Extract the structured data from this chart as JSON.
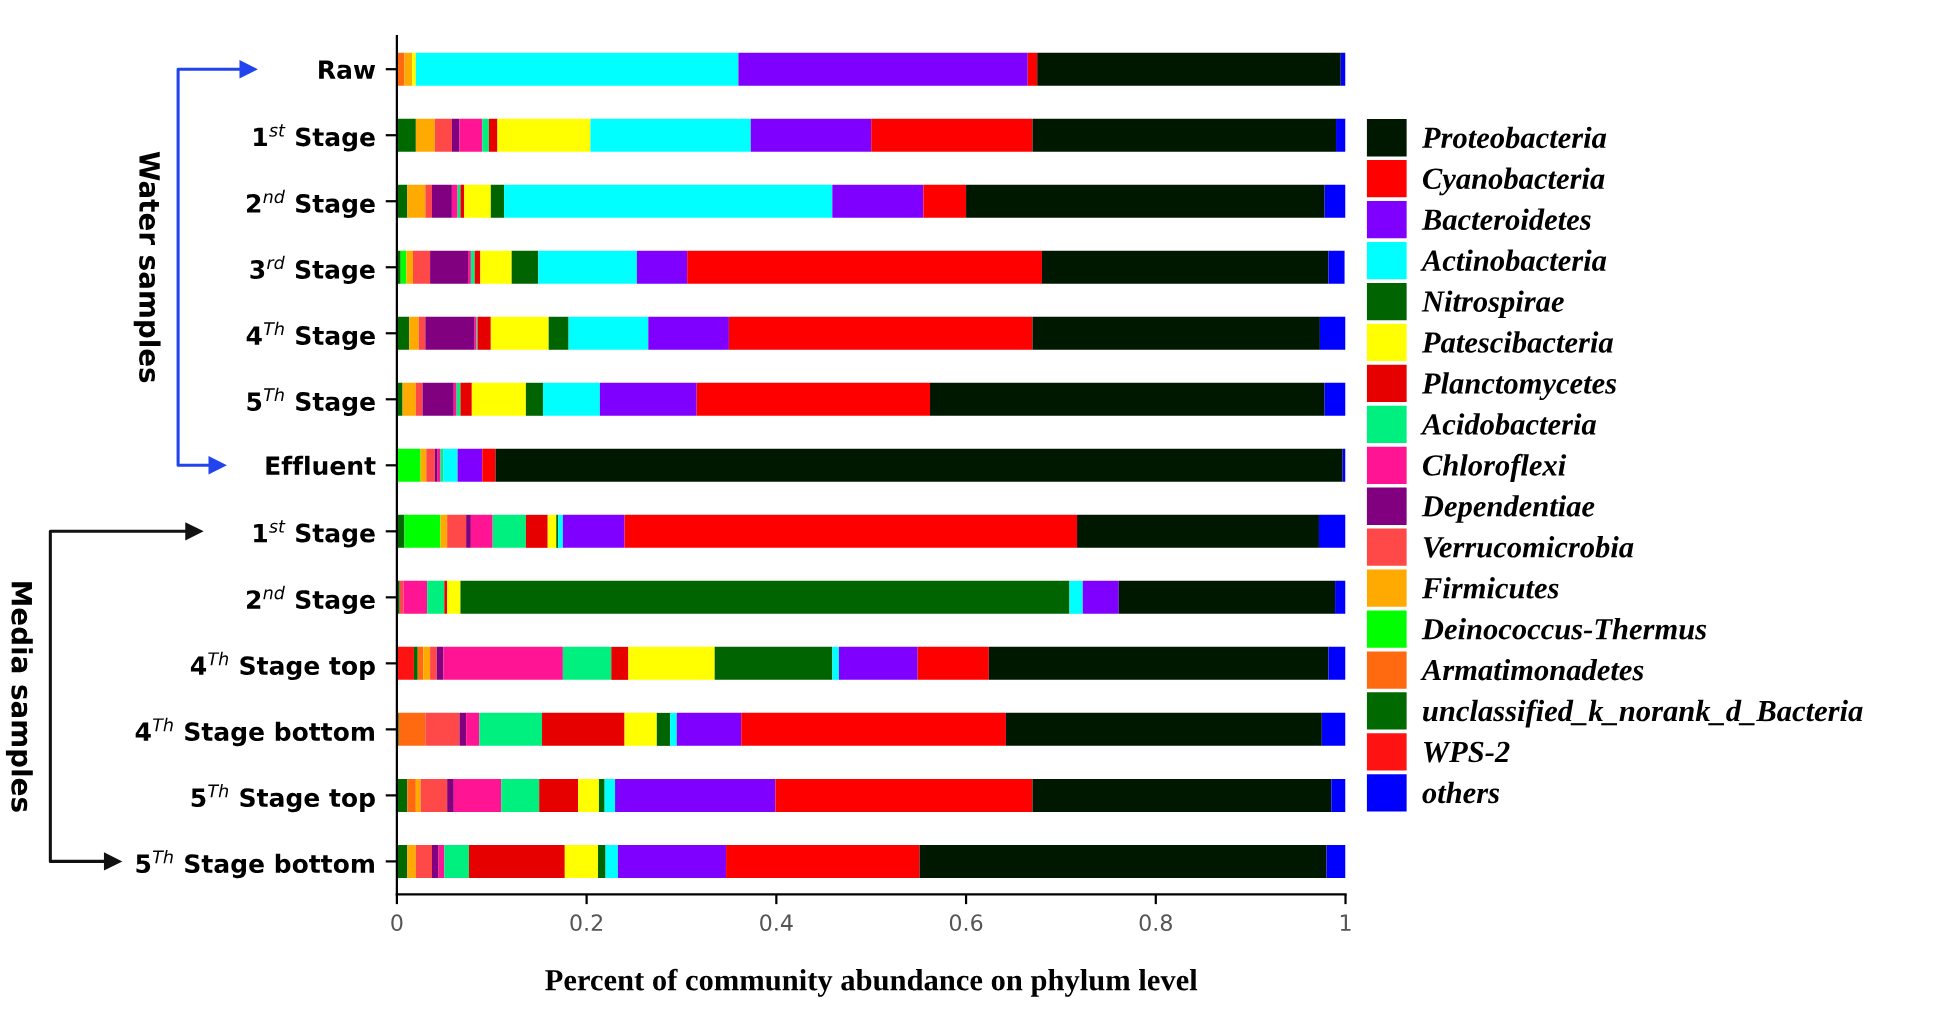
{
  "chart_data": {
    "type": "bar",
    "orientation": "horizontal",
    "stacked": true,
    "xlabel": "Percent of community abundance on phylum level",
    "annotations": [
      "Water samples",
      "Media samples"
    ],
    "categories": [
      "Raw",
      "1$^{st}$ Stage",
      "2$^{nd}$ Stage",
      "3$^{rd}$ Stage",
      "4$^{Th}$ Stage",
      "5$^{Th}$ Stage",
      "Effluent",
      "1$^{st}$ Stage",
      "2$^{nd}$ Stage",
      "4$^{Th}$ Stage top",
      "4$^{Th}$ Stage bottom",
      "5$^{Th}$ Stage top",
      "5$^{Th}$ Stage bottom"
    ],
    "xlim": [
      0,
      1
    ],
    "xticks": [
      0,
      0.2,
      0.4,
      0.6,
      0.8,
      1
    ],
    "grid": false,
    "legend": "right",
    "series": [
      {
        "name": "WPS-2",
        "color": "#ff1212",
        "values": [
          0,
          0,
          0,
          0,
          0,
          0,
          0,
          0,
          0,
          0.018,
          0,
          0,
          0
        ]
      },
      {
        "name": "unclassified_k_norank_d_Bacteria",
        "color": "#006a00",
        "values": [
          0,
          0.02,
          0.011,
          0.004,
          0.013,
          0.006,
          0,
          0.008,
          0.003,
          0.004,
          0.002,
          0.011,
          0.011
        ]
      },
      {
        "name": "Armatimonadetes",
        "color": "#ff6a10",
        "values": [
          0.008,
          0,
          0,
          0,
          0,
          0,
          0,
          0,
          0,
          0.006,
          0.028,
          0.009,
          0
        ]
      },
      {
        "name": "Deinococcus-Thermus",
        "color": "#00ff00",
        "values": [
          0,
          0,
          0,
          0.006,
          0,
          0,
          0.025,
          0.038,
          0,
          0,
          0,
          0,
          0
        ]
      },
      {
        "name": "Firmicutes",
        "color": "#ffaa00",
        "values": [
          0.008,
          0.02,
          0.019,
          0.007,
          0.01,
          0.014,
          0.006,
          0.007,
          0,
          0.007,
          0,
          0.005,
          0.009
        ]
      },
      {
        "name": "Verrucomicrobia",
        "color": "#ff4848",
        "values": [
          0,
          0.018,
          0.007,
          0.018,
          0.007,
          0.007,
          0.009,
          0.02,
          0.004,
          0.007,
          0.036,
          0.028,
          0.017
        ]
      },
      {
        "name": "Dependentiae",
        "color": "#800080",
        "values": [
          0,
          0.008,
          0.021,
          0.04,
          0.052,
          0.033,
          0.003,
          0.005,
          0,
          0.007,
          0.007,
          0.007,
          0.007
        ]
      },
      {
        "name": "Chloroflexi",
        "color": "#ff1493",
        "values": [
          0,
          0.024,
          0.006,
          0.003,
          0.002,
          0.003,
          0.003,
          0.023,
          0.025,
          0.126,
          0.014,
          0.05,
          0.006
        ]
      },
      {
        "name": "Acidobacteria",
        "color": "#00f080",
        "values": [
          0,
          0.007,
          0.003,
          0.004,
          0.001,
          0.004,
          0.003,
          0.035,
          0.018,
          0.051,
          0.066,
          0.04,
          0.026
        ]
      },
      {
        "name": "Planctomycetes",
        "color": "#e60000",
        "values": [
          0,
          0.009,
          0.004,
          0.006,
          0.014,
          0.012,
          0,
          0.023,
          0.003,
          0.018,
          0.087,
          0.041,
          0.101
        ]
      },
      {
        "name": "Patescibacteria",
        "color": "#ffff00",
        "values": [
          0.004,
          0.098,
          0.028,
          0.033,
          0.061,
          0.057,
          0,
          0.009,
          0.014,
          0.091,
          0.034,
          0.022,
          0.035
        ]
      },
      {
        "name": "Nitrospirae",
        "color": "#006400",
        "values": [
          0,
          0,
          0.014,
          0.028,
          0.021,
          0.018,
          0,
          0.002,
          0.642,
          0.124,
          0.014,
          0.006,
          0.008
        ]
      },
      {
        "name": "Actinobacteria",
        "color": "#00ffff",
        "values": [
          0.34,
          0.169,
          0.346,
          0.104,
          0.084,
          0.06,
          0.015,
          0.005,
          0.014,
          0.007,
          0.007,
          0.011,
          0.013
        ]
      },
      {
        "name": "Bacteroidetes",
        "color": "#7f00ff",
        "values": [
          0.305,
          0.127,
          0.096,
          0.053,
          0.085,
          0.102,
          0.026,
          0.065,
          0.038,
          0.083,
          0.068,
          0.169,
          0.114
        ]
      },
      {
        "name": "Cyanobacteria",
        "color": "#ff0000",
        "values": [
          0.01,
          0.17,
          0.045,
          0.374,
          0.32,
          0.246,
          0.014,
          0.477,
          0,
          0.075,
          0.279,
          0.271,
          0.204
        ]
      },
      {
        "name": "Proteobacteria",
        "color": "#001800",
        "values": [
          0.32,
          0.32,
          0.378,
          0.302,
          0.303,
          0.416,
          0.893,
          0.255,
          0.228,
          0.358,
          0.333,
          0.315,
          0.429
        ]
      },
      {
        "name": "others",
        "color": "#0000ff",
        "values": [
          0.005,
          0.01,
          0.022,
          0.017,
          0.027,
          0.022,
          0.003,
          0.028,
          0.011,
          0.018,
          0.025,
          0.015,
          0.02
        ]
      }
    ]
  }
}
